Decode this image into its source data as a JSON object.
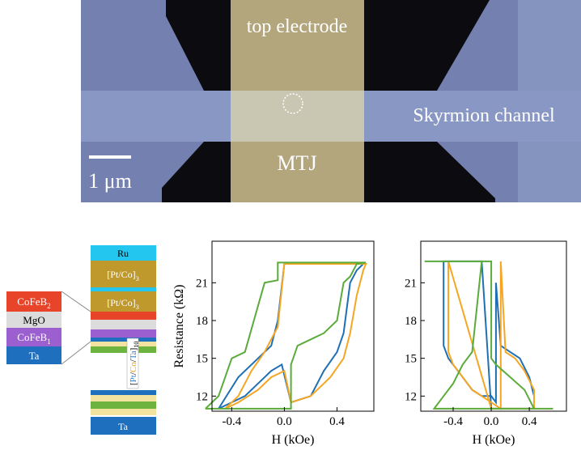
{
  "image": {
    "electrode_label": "top electrode",
    "junction_label": "MTJ",
    "channel_label": "Skyrmion channel",
    "scale_bar": "1 μm"
  },
  "stack": {
    "top": [
      {
        "text": "Ru"
      },
      {
        "text": "[Pt/Co]",
        "sub": "3"
      },
      {
        "text": "[Pt/Co]",
        "sub": "3"
      }
    ],
    "multilayer": {
      "parts": [
        "Pt",
        "Co",
        "Ta"
      ],
      "sub": "10"
    },
    "bottom": {
      "text": "Ta"
    },
    "detail": [
      {
        "text": "CoFeB",
        "sub": "2"
      },
      {
        "text": "MgO"
      },
      {
        "text": "CoFeB",
        "sub": "1"
      },
      {
        "text": "Ta"
      }
    ]
  },
  "chart_data": [
    {
      "type": "line",
      "y_label": "Resistance (kΩ)",
      "x_label": "H (kOe)",
      "xlim": [
        -0.55,
        0.68
      ],
      "ylim": [
        10.8,
        24.3
      ],
      "xticks": [
        -0.4,
        {
          "value": 0,
          "label": "0.0"
        },
        0.4
      ],
      "yticks": [
        12,
        15,
        18,
        21
      ],
      "series": [
        {
          "color": "#1f6fb4",
          "x": [
            -0.5,
            -0.4,
            -0.3,
            -0.2,
            -0.1,
            -0.02,
            0.05,
            0.2,
            0.3,
            0.4,
            0.45,
            0.5,
            0.55,
            0.6,
            0.2,
            0.0,
            -0.05,
            -0.1,
            -0.2,
            -0.35,
            -0.5
          ],
          "values": [
            11,
            11.5,
            12,
            13,
            14,
            14.5,
            11.5,
            12,
            14,
            15.5,
            17,
            21,
            22,
            22.5,
            22.5,
            22.5,
            18,
            16,
            15,
            13.5,
            11
          ]
        },
        {
          "color": "#f5a623",
          "x": [
            -0.45,
            -0.35,
            -0.2,
            -0.1,
            0.0,
            0.05,
            0.2,
            0.35,
            0.45,
            0.5,
            0.55,
            0.6,
            0.62,
            0.3,
            0.0,
            -0.05,
            -0.15,
            -0.25,
            -0.35,
            -0.45
          ],
          "values": [
            11,
            11.5,
            12.5,
            13.5,
            14,
            11.5,
            12,
            13.5,
            15,
            17,
            20,
            22,
            22.5,
            22.5,
            22.5,
            17.5,
            15.5,
            14,
            12,
            11
          ]
        },
        {
          "color": "#5aab3a",
          "x": [
            -0.6,
            0.05,
            0.05,
            0.1,
            0.2,
            0.3,
            0.4,
            0.45,
            0.5,
            0.55,
            0.62,
            -0.05,
            -0.05,
            -0.15,
            -0.3,
            -0.4,
            -0.5,
            -0.6
          ],
          "values": [
            11,
            11,
            14.5,
            16,
            16.5,
            17,
            18,
            21,
            21.5,
            22.5,
            22.6,
            22.6,
            21.2,
            21,
            15.5,
            15,
            12,
            11
          ]
        }
      ]
    },
    {
      "type": "line",
      "x_label": "H (kOe)",
      "xlim": [
        -0.74,
        0.79
      ],
      "ylim": [
        10.8,
        24.3
      ],
      "xticks": [
        -0.4,
        {
          "value": 0,
          "label": "0.0"
        },
        0.4
      ],
      "yticks": [
        12,
        15,
        18,
        21
      ],
      "series": [
        {
          "color": "#1f6fb4",
          "x": [
            -0.5,
            -0.5,
            -0.45,
            -0.35,
            -0.2,
            -0.1,
            0.0,
            0.05,
            0.05,
            0.1,
            0.2,
            0.3,
            0.4,
            0.45,
            0.45,
            0.2,
            0.0,
            -0.1,
            -0.5
          ],
          "values": [
            22.7,
            16,
            15,
            14,
            12.5,
            12,
            12,
            11.5,
            21,
            16,
            15.5,
            15,
            13.5,
            12,
            11,
            11,
            11,
            22.7,
            22.7
          ]
        },
        {
          "color": "#f5a623",
          "x": [
            -0.45,
            -0.45,
            -0.4,
            -0.3,
            -0.2,
            -0.1,
            0.0,
            0.1,
            0.1,
            0.15,
            0.25,
            0.35,
            0.45,
            0.45,
            0.0,
            -0.45
          ],
          "values": [
            22.7,
            15.5,
            14.5,
            13.5,
            12.5,
            12,
            11.5,
            11,
            22.7,
            15.5,
            15,
            14,
            12.5,
            11,
            11,
            22.7
          ]
        },
        {
          "color": "#5aab3a",
          "x": [
            -0.7,
            0.0,
            0.0,
            0.05,
            0.2,
            0.35,
            0.45,
            0.65,
            -0.6,
            -0.6,
            -0.5,
            -0.4,
            -0.3,
            -0.2,
            -0.1,
            -0.7
          ],
          "values": [
            22.7,
            22.7,
            15,
            14.5,
            13.5,
            12.5,
            11,
            11,
            11,
            11,
            12,
            13,
            14.5,
            15.5,
            22.7,
            22.7
          ]
        }
      ]
    }
  ]
}
